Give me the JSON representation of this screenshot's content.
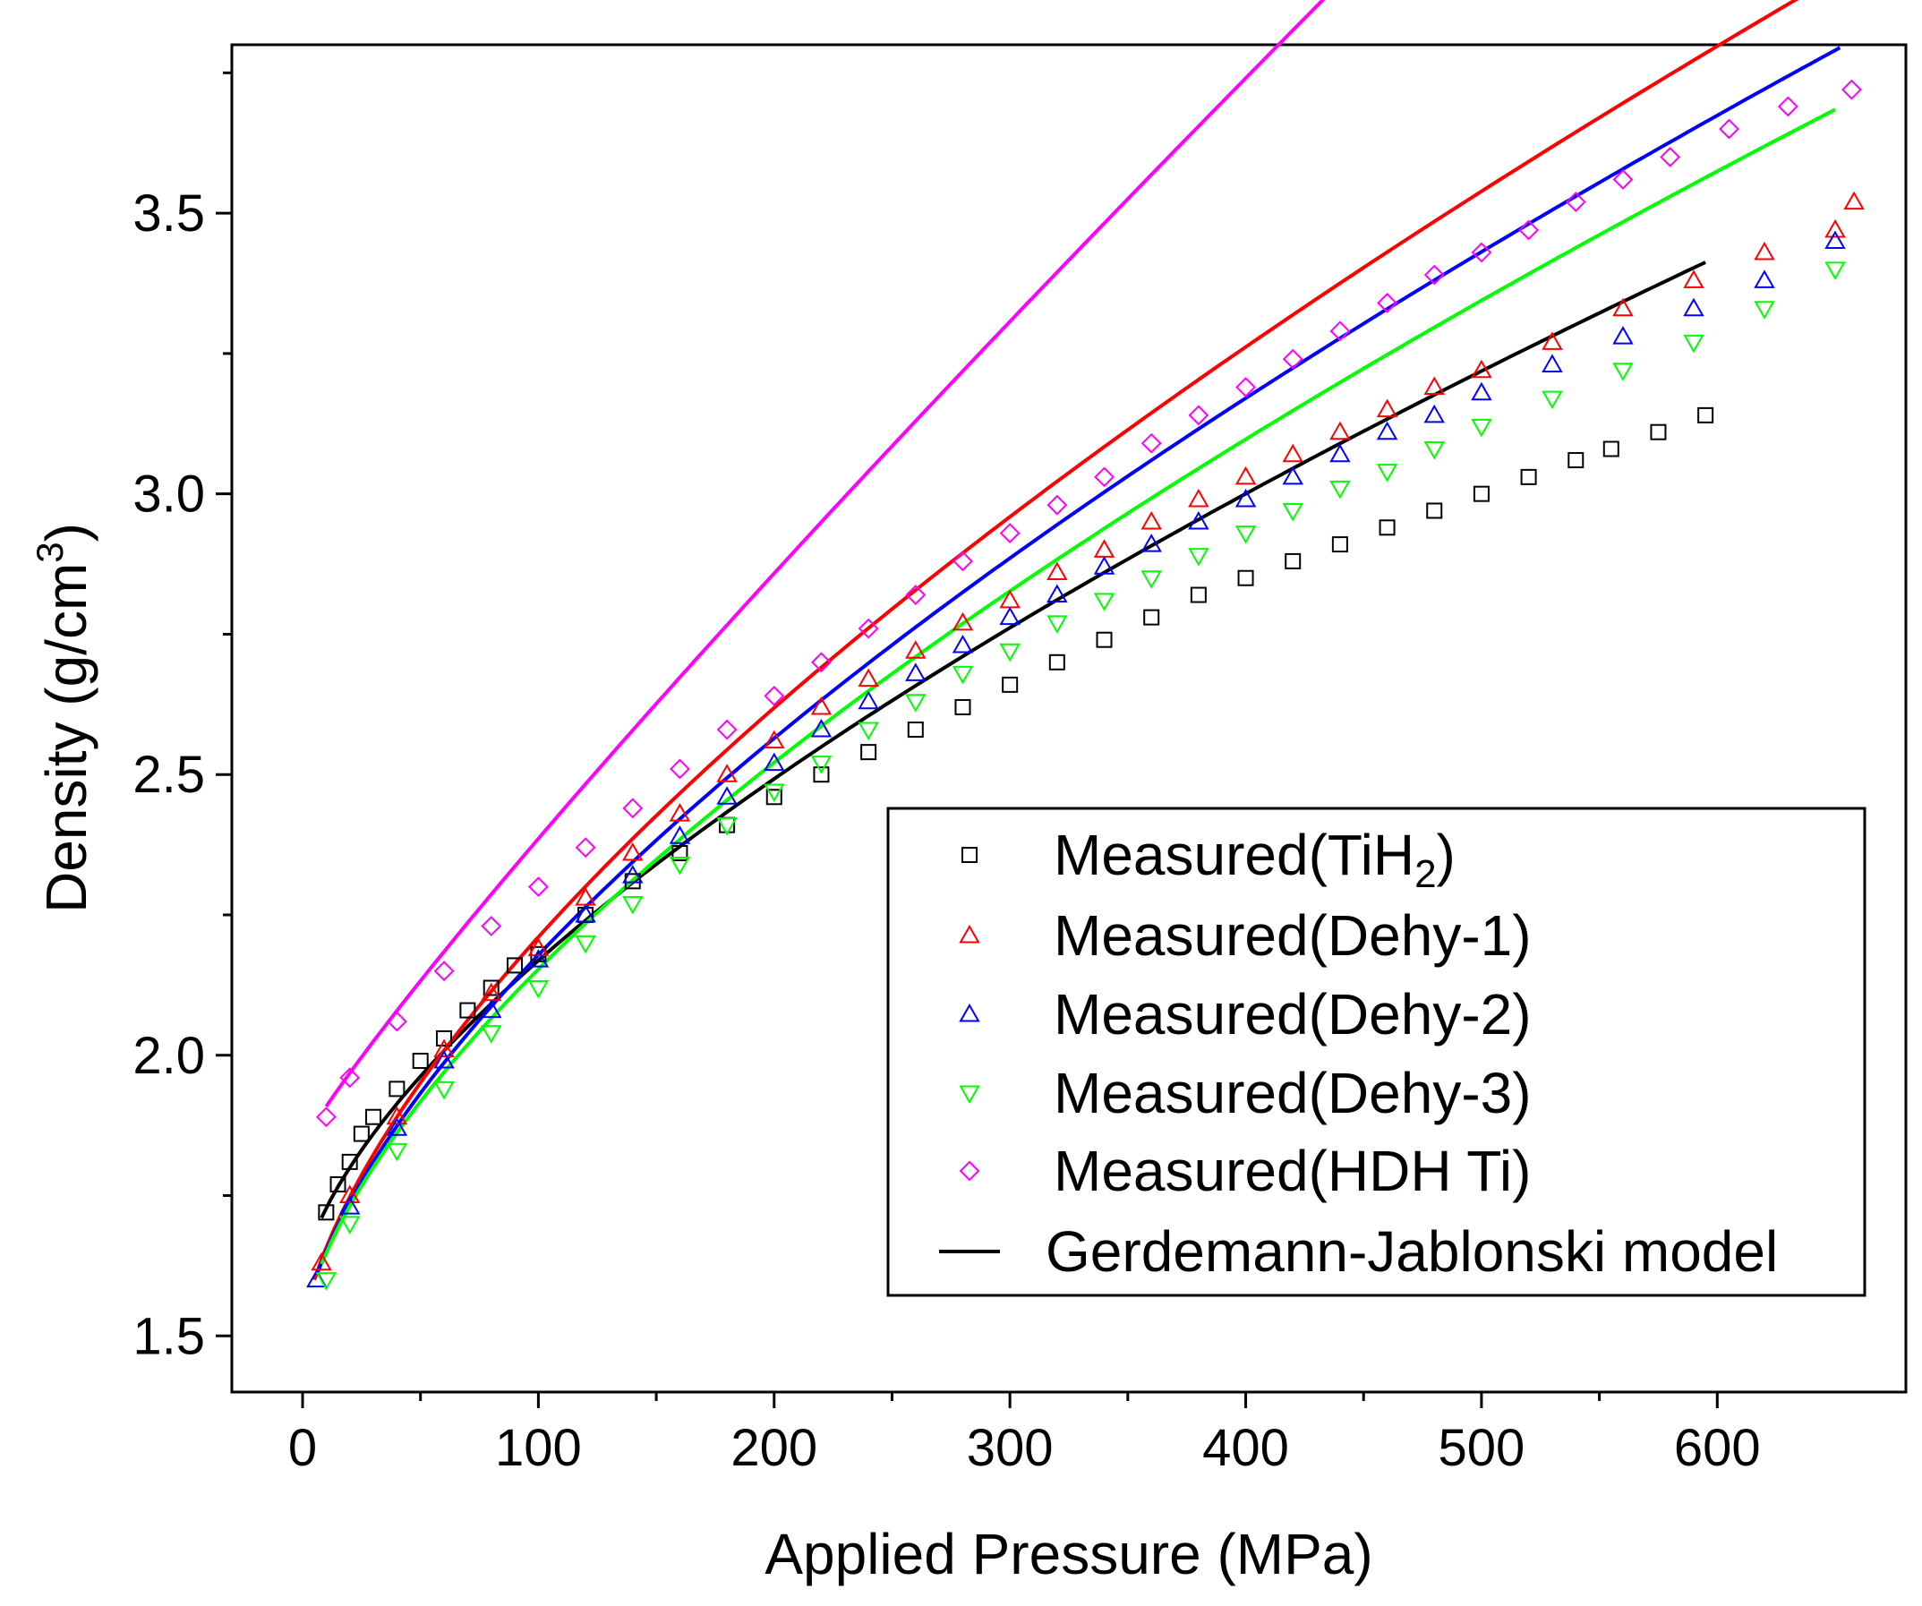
{
  "chart_data": {
    "type": "scatter",
    "xlabel": "Applied Pressure (MPa)",
    "ylabel": {
      "main": "Density (g/cm",
      "sup": "3",
      "close": ")"
    },
    "xlim": [
      -30,
      680
    ],
    "ylim": [
      1.4,
      3.8
    ],
    "xticks": [
      0,
      100,
      200,
      300,
      400,
      500,
      600
    ],
    "yticks": [
      1.5,
      2.0,
      2.5,
      3.0,
      3.5
    ],
    "grid": false,
    "legend_position": "bottom-right",
    "series": [
      {
        "name": "Measured(TiH2)",
        "legend_text": {
          "main": "Measured(TiH",
          "sub": "2",
          "close": ")"
        },
        "marker": "square",
        "color": "#000000",
        "x": [
          10,
          15,
          20,
          25,
          30,
          40,
          50,
          60,
          70,
          80,
          90,
          100,
          120,
          140,
          160,
          180,
          200,
          220,
          240,
          260,
          280,
          300,
          320,
          340,
          360,
          380,
          400,
          420,
          440,
          460,
          480,
          500,
          520,
          540,
          555,
          575,
          595
        ],
        "y": [
          1.72,
          1.77,
          1.81,
          1.86,
          1.89,
          1.94,
          1.99,
          2.03,
          2.08,
          2.12,
          2.16,
          2.18,
          2.25,
          2.31,
          2.36,
          2.41,
          2.46,
          2.5,
          2.54,
          2.58,
          2.62,
          2.66,
          2.7,
          2.74,
          2.78,
          2.82,
          2.85,
          2.88,
          2.91,
          2.94,
          2.97,
          3.0,
          3.03,
          3.06,
          3.08,
          3.11,
          3.14
        ],
        "fit": {
          "d0": 1.6,
          "k": 0.0285,
          "n": 0.65,
          "xmin": 8,
          "xmax": 595
        }
      },
      {
        "name": "Measured(Dehy-1)",
        "legend_text": {
          "main": "Measured(Dehy-1)",
          "sub": "",
          "close": ""
        },
        "marker": "triangle-up",
        "color": "#ff0000",
        "x": [
          8,
          20,
          40,
          60,
          80,
          100,
          120,
          140,
          160,
          180,
          200,
          220,
          240,
          260,
          280,
          300,
          320,
          340,
          360,
          380,
          400,
          420,
          440,
          460,
          480,
          500,
          530,
          560,
          590,
          620,
          650,
          658
        ],
        "y": [
          1.63,
          1.75,
          1.89,
          2.01,
          2.11,
          2.19,
          2.28,
          2.36,
          2.43,
          2.5,
          2.56,
          2.62,
          2.67,
          2.72,
          2.77,
          2.81,
          2.86,
          2.9,
          2.95,
          2.99,
          3.03,
          3.07,
          3.11,
          3.15,
          3.19,
          3.22,
          3.27,
          3.33,
          3.38,
          3.43,
          3.47,
          3.52
        ],
        "fit": {
          "d0": 1.5,
          "k": 0.0348,
          "n": 0.655,
          "xmin": 5,
          "xmax": 658
        }
      },
      {
        "name": "Measured(Dehy-2)",
        "legend_text": {
          "main": "Measured(Dehy-2)",
          "sub": "",
          "close": ""
        },
        "marker": "triangle-up",
        "color": "#0000ff",
        "x": [
          6,
          20,
          40,
          60,
          80,
          100,
          120,
          140,
          160,
          180,
          200,
          220,
          240,
          260,
          280,
          300,
          320,
          340,
          360,
          380,
          400,
          420,
          440,
          460,
          480,
          500,
          530,
          560,
          590,
          620,
          650
        ],
        "y": [
          1.6,
          1.73,
          1.87,
          1.99,
          2.08,
          2.17,
          2.25,
          2.32,
          2.39,
          2.46,
          2.52,
          2.58,
          2.63,
          2.68,
          2.73,
          2.78,
          2.82,
          2.87,
          2.91,
          2.95,
          2.99,
          3.03,
          3.07,
          3.11,
          3.14,
          3.18,
          3.23,
          3.28,
          3.33,
          3.38,
          3.45
        ],
        "fit": {
          "d0": 1.5,
          "k": 0.034,
          "n": 0.65,
          "xmin": 6,
          "xmax": 652
        }
      },
      {
        "name": "Measured(Dehy-3)",
        "legend_text": {
          "main": "Measured(Dehy-3)",
          "sub": "",
          "close": ""
        },
        "marker": "triangle-down",
        "color": "#00ff00",
        "x": [
          10,
          20,
          40,
          60,
          80,
          100,
          120,
          140,
          160,
          180,
          200,
          220,
          240,
          260,
          280,
          300,
          320,
          340,
          360,
          380,
          400,
          420,
          440,
          460,
          480,
          500,
          530,
          560,
          590,
          620,
          650
        ],
        "y": [
          1.6,
          1.7,
          1.83,
          1.94,
          2.04,
          2.12,
          2.2,
          2.27,
          2.34,
          2.41,
          2.47,
          2.52,
          2.58,
          2.63,
          2.68,
          2.72,
          2.77,
          2.81,
          2.85,
          2.89,
          2.93,
          2.97,
          3.01,
          3.04,
          3.08,
          3.12,
          3.17,
          3.22,
          3.27,
          3.33,
          3.4
        ],
        "fit": {
          "d0": 1.5,
          "k": 0.0335,
          "n": 0.645,
          "xmin": 8,
          "xmax": 650
        }
      },
      {
        "name": "Measured(HDH Ti)",
        "legend_text": {
          "main": "Measured(HDH Ti)",
          "sub": "",
          "close": ""
        },
        "marker": "diamond",
        "color": "#ff00ff",
        "x": [
          10,
          20,
          40,
          60,
          80,
          100,
          120,
          140,
          160,
          180,
          200,
          220,
          240,
          260,
          280,
          300,
          320,
          340,
          360,
          380,
          400,
          420,
          440,
          460,
          480,
          500,
          520,
          540,
          560,
          580,
          605,
          630,
          657
        ],
        "y": [
          1.89,
          1.96,
          2.06,
          2.15,
          2.23,
          2.3,
          2.37,
          2.44,
          2.51,
          2.58,
          2.64,
          2.7,
          2.76,
          2.82,
          2.88,
          2.93,
          2.98,
          3.03,
          3.09,
          3.14,
          3.19,
          3.24,
          3.29,
          3.34,
          3.39,
          3.43,
          3.47,
          3.52,
          3.56,
          3.6,
          3.65,
          3.69,
          3.72
        ],
        "fit": {
          "d0": 1.84,
          "k": 0.00865,
          "n": 0.9,
          "xmin": 10,
          "xmax": 657
        }
      },
      {
        "name": "Gerdemann-Jablonski model",
        "legend_text": {
          "main": "Gerdemann-Jablonski model",
          "sub": "",
          "close": ""
        },
        "marker": "line",
        "color": "#000000"
      }
    ]
  }
}
